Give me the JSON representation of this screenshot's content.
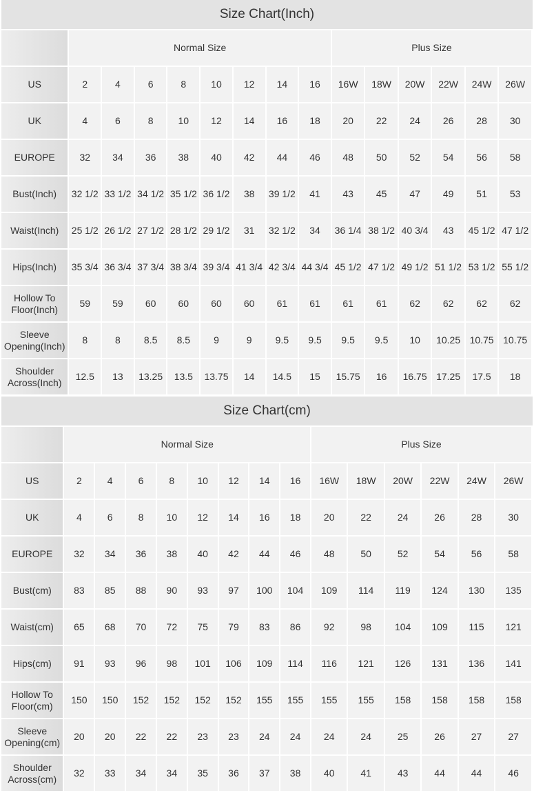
{
  "charts": [
    {
      "title": "Size Chart(Inch)",
      "groups": [
        "Normal Size",
        "Plus Size"
      ],
      "rows": [
        {
          "label": "US",
          "values": [
            "2",
            "4",
            "6",
            "8",
            "10",
            "12",
            "14",
            "16",
            "16W",
            "18W",
            "20W",
            "22W",
            "24W",
            "26W"
          ]
        },
        {
          "label": "UK",
          "values": [
            "4",
            "6",
            "8",
            "10",
            "12",
            "14",
            "16",
            "18",
            "20",
            "22",
            "24",
            "26",
            "28",
            "30"
          ]
        },
        {
          "label": "EUROPE",
          "values": [
            "32",
            "34",
            "36",
            "38",
            "40",
            "42",
            "44",
            "46",
            "48",
            "50",
            "52",
            "54",
            "56",
            "58"
          ]
        },
        {
          "label": "Bust(Inch)",
          "values": [
            "32 1/2",
            "33 1/2",
            "34 1/2",
            "35 1/2",
            "36 1/2",
            "38",
            "39 1/2",
            "41",
            "43",
            "45",
            "47",
            "49",
            "51",
            "53"
          ]
        },
        {
          "label": "Waist(Inch)",
          "values": [
            "25 1/2",
            "26 1/2",
            "27 1/2",
            "28 1/2",
            "29 1/2",
            "31",
            "32 1/2",
            "34",
            "36 1/4",
            "38 1/2",
            "40 3/4",
            "43",
            "45 1/2",
            "47 1/2"
          ]
        },
        {
          "label": "Hips(Inch)",
          "values": [
            "35 3/4",
            "36 3/4",
            "37 3/4",
            "38 3/4",
            "39 3/4",
            "41 3/4",
            "42 3/4",
            "44 3/4",
            "45 1/2",
            "47 1/2",
            "49 1/2",
            "51 1/2",
            "53 1/2",
            "55 1/2"
          ]
        },
        {
          "label": "Hollow To Floor(Inch)",
          "values": [
            "59",
            "59",
            "60",
            "60",
            "60",
            "60",
            "61",
            "61",
            "61",
            "61",
            "62",
            "62",
            "62",
            "62"
          ]
        },
        {
          "label": "Sleeve Opening(Inch)",
          "values": [
            "8",
            "8",
            "8.5",
            "8.5",
            "9",
            "9",
            "9.5",
            "9.5",
            "9.5",
            "9.5",
            "10",
            "10.25",
            "10.75",
            "10.75"
          ]
        },
        {
          "label": "Shoulder Across(Inch)",
          "values": [
            "12.5",
            "13",
            "13.25",
            "13.5",
            "13.75",
            "14",
            "14.5",
            "15",
            "15.75",
            "16",
            "16.75",
            "17.25",
            "17.5",
            "18"
          ]
        }
      ]
    },
    {
      "title": "Size Chart(cm)",
      "groups": [
        "Normal Size",
        "Plus Size"
      ],
      "rows": [
        {
          "label": "US",
          "values": [
            "2",
            "4",
            "6",
            "8",
            "10",
            "12",
            "14",
            "16",
            "16W",
            "18W",
            "20W",
            "22W",
            "24W",
            "26W"
          ]
        },
        {
          "label": "UK",
          "values": [
            "4",
            "6",
            "8",
            "10",
            "12",
            "14",
            "16",
            "18",
            "20",
            "22",
            "24",
            "26",
            "28",
            "30"
          ]
        },
        {
          "label": "EUROPE",
          "values": [
            "32",
            "34",
            "36",
            "38",
            "40",
            "42",
            "44",
            "46",
            "48",
            "50",
            "52",
            "54",
            "56",
            "58"
          ]
        },
        {
          "label": "Bust(cm)",
          "values": [
            "83",
            "85",
            "88",
            "90",
            "93",
            "97",
            "100",
            "104",
            "109",
            "114",
            "119",
            "124",
            "130",
            "135"
          ]
        },
        {
          "label": "Waist(cm)",
          "values": [
            "65",
            "68",
            "70",
            "72",
            "75",
            "79",
            "83",
            "86",
            "92",
            "98",
            "104",
            "109",
            "115",
            "121"
          ]
        },
        {
          "label": "Hips(cm)",
          "values": [
            "91",
            "93",
            "96",
            "98",
            "101",
            "106",
            "109",
            "114",
            "116",
            "121",
            "126",
            "131",
            "136",
            "141"
          ]
        },
        {
          "label": "Hollow To Floor(cm)",
          "values": [
            "150",
            "150",
            "152",
            "152",
            "152",
            "152",
            "155",
            "155",
            "155",
            "155",
            "158",
            "158",
            "158",
            "158"
          ]
        },
        {
          "label": "Sleeve Opening(cm)",
          "values": [
            "20",
            "20",
            "22",
            "22",
            "23",
            "23",
            "24",
            "24",
            "24",
            "24",
            "25",
            "26",
            "27",
            "27"
          ]
        },
        {
          "label": "Shoulder Across(cm)",
          "values": [
            "32",
            "33",
            "34",
            "34",
            "35",
            "36",
            "37",
            "38",
            "40",
            "41",
            "43",
            "44",
            "44",
            "46"
          ]
        }
      ]
    }
  ]
}
